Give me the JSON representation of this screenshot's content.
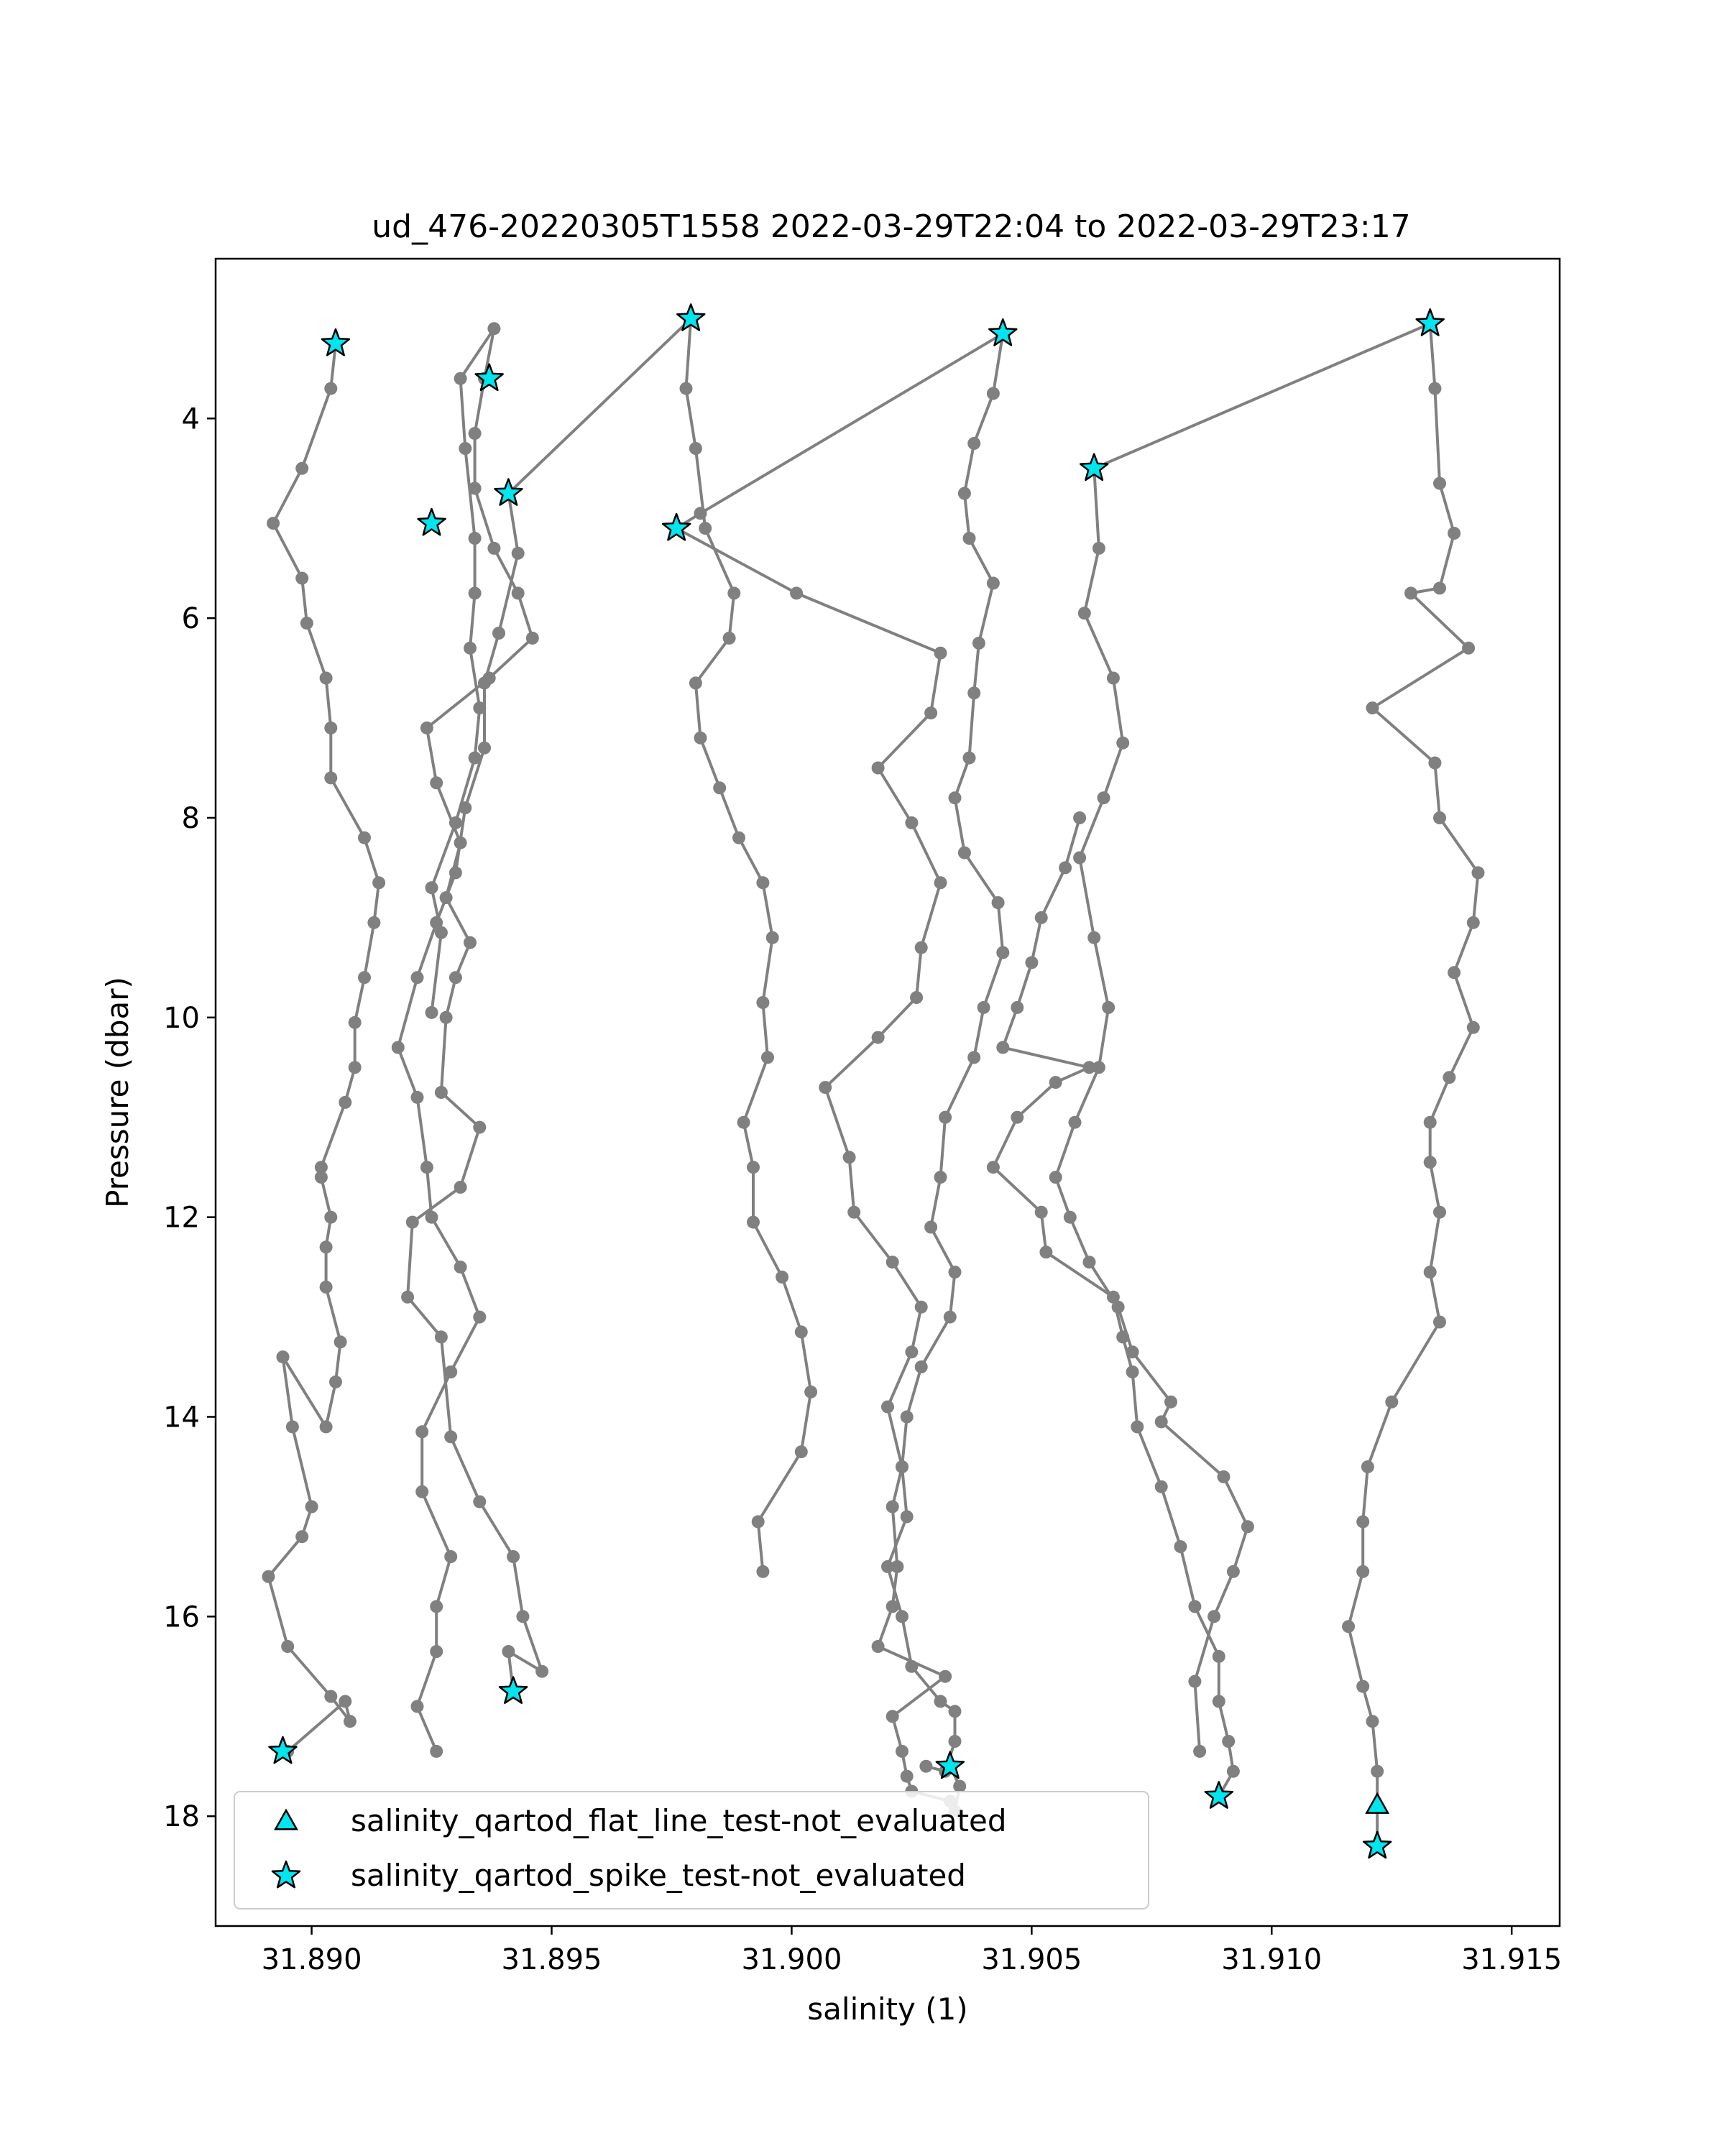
{
  "chart_data": {
    "type": "scatter",
    "title": "ud_476-20220305T1558 2022-03-29T22:04 to 2022-03-29T23:17",
    "xlabel": "salinity (1)",
    "ylabel": "Pressure (dbar)",
    "xlim": [
      31.888,
      31.916
    ],
    "ylim": [
      19.1,
      2.4
    ],
    "y_inverted": true,
    "grid": false,
    "xticks": [
      31.89,
      31.895,
      31.9,
      31.905,
      31.91,
      31.915
    ],
    "xtick_labels": [
      "31.890",
      "31.895",
      "31.900",
      "31.905",
      "31.910",
      "31.915"
    ],
    "yticks": [
      4,
      6,
      8,
      10,
      12,
      14,
      16,
      18
    ],
    "ytick_labels": [
      "4",
      "6",
      "8",
      "10",
      "12",
      "14",
      "16",
      "18"
    ],
    "colors": {
      "line": "#808080",
      "marker_fill": "#00e5ee",
      "marker_edge": "#000000"
    },
    "legend_position": "lower-left",
    "legend": [
      {
        "label": "salinity_qartod_flat_line_test-not_evaluated",
        "marker": "triangle"
      },
      {
        "label": "salinity_qartod_spike_test-not_evaluated",
        "marker": "star"
      }
    ],
    "series": [
      {
        "x": [
          31.8905,
          31.8904,
          31.8898,
          31.8892,
          31.8898,
          31.8899,
          31.8903,
          31.8904,
          31.8904,
          31.8911,
          31.8914,
          31.8913,
          31.8911,
          31.8909,
          31.8909,
          31.8907,
          31.8902,
          31.8902,
          31.8904,
          31.8903,
          31.8903,
          31.8906,
          31.8905,
          31.8903,
          31.8894,
          31.8896,
          31.89,
          31.8898,
          31.8891,
          31.8895,
          31.8904,
          31.8908,
          31.8907,
          31.8895
        ],
        "y": [
          3.25,
          3.7,
          4.5,
          5.05,
          5.6,
          6.05,
          6.6,
          7.1,
          7.6,
          8.2,
          8.65,
          9.05,
          9.6,
          10.05,
          10.5,
          10.85,
          11.5,
          11.6,
          12.0,
          12.3,
          12.7,
          13.25,
          13.65,
          14.1,
          13.4,
          14.1,
          14.9,
          15.2,
          15.6,
          16.3,
          16.8,
          17.05,
          16.85,
          17.35
        ]
      },
      {
        "x": [
          31.8942,
          31.8941,
          31.8948,
          31.8944,
          31.8942,
          31.8935,
          31.8929,
          31.8927,
          31.892,
          31.8921,
          31.8931,
          31.8935,
          31.8927,
          31.8928,
          31.893,
          31.8933,
          31.8928,
          31.8931,
          31.8926,
          31.8924,
          31.8937,
          31.8946,
          31.8943,
          31.8938,
          31.8934,
          31.8934,
          31.8936,
          31.8938,
          31.8931,
          31.8932,
          31.8934,
          31.8934,
          31.8933,
          31.8935,
          31.8934,
          31.893,
          31.8925,
          31.8927,
          31.8925
        ],
        "y": [
          16.75,
          16.35,
          16.55,
          16.0,
          15.4,
          14.85,
          14.2,
          13.2,
          12.8,
          12.05,
          11.7,
          11.1,
          10.75,
          10.0,
          9.6,
          9.25,
          8.8,
          8.25,
          7.65,
          7.1,
          6.6,
          6.2,
          5.75,
          5.3,
          4.7,
          4.15,
          3.6,
          3.1,
          3.6,
          4.3,
          5.2,
          5.75,
          6.3,
          6.9,
          7.4,
          8.05,
          8.7,
          9.15,
          9.95
        ]
      },
      {
        "x": [
          31.8941,
          31.8943,
          31.8939,
          31.8936,
          31.8936,
          31.8932,
          31.893,
          31.8926,
          31.8922,
          31.8918,
          31.8922,
          31.8924,
          31.8925,
          31.8931,
          31.8935,
          31.8929,
          31.8923,
          31.8923,
          31.8929,
          31.8926,
          31.8926,
          31.8922,
          31.8926
        ],
        "y": [
          4.75,
          5.35,
          6.15,
          6.65,
          7.3,
          7.9,
          8.55,
          9.05,
          9.6,
          10.3,
          10.8,
          11.5,
          12.0,
          12.5,
          13.0,
          13.55,
          14.15,
          14.75,
          15.4,
          15.9,
          16.35,
          16.9,
          17.35
        ]
      },
      {
        "x": [
          31.8941,
          31.8979,
          31.8978,
          31.898,
          31.8982,
          31.8988,
          31.8987,
          31.898,
          31.8981,
          31.8985,
          31.8989,
          31.8994,
          31.8996,
          31.8994,
          31.8995,
          31.899,
          31.8992,
          31.8992,
          31.8998,
          31.9002,
          31.9004,
          31.9002,
          31.8993,
          31.8994
        ],
        "y": [
          4.75,
          3.0,
          3.7,
          4.3,
          5.1,
          5.75,
          6.2,
          6.65,
          7.2,
          7.7,
          8.2,
          8.65,
          9.2,
          9.85,
          10.4,
          11.05,
          11.5,
          12.05,
          12.6,
          13.15,
          13.75,
          14.35,
          15.05,
          15.55
        ]
      },
      {
        "x": [
          31.9044,
          31.9042,
          31.9038,
          31.9036,
          31.9037,
          31.9042,
          31.9039,
          31.9038,
          31.9037,
          31.9034,
          31.9036,
          31.9043,
          31.9044,
          31.904,
          31.9038,
          31.9032,
          31.9031,
          31.9029,
          31.9034,
          31.9033,
          31.9027,
          31.9024,
          31.9023,
          31.9024,
          31.902,
          31.9023,
          31.9025,
          31.9031,
          31.9034,
          31.9034,
          31.9032,
          31.9028
        ],
        "y": [
          3.15,
          3.75,
          4.25,
          4.75,
          5.2,
          5.65,
          6.25,
          6.75,
          7.4,
          7.8,
          8.35,
          8.85,
          9.35,
          9.9,
          10.4,
          11.0,
          11.6,
          12.1,
          12.55,
          13.0,
          13.5,
          14.0,
          14.5,
          15.0,
          15.5,
          16.0,
          16.5,
          16.85,
          16.95,
          17.25,
          17.55,
          17.5
        ]
      },
      {
        "x": [
          31.9044,
          31.8981,
          31.8976,
          31.9001,
          31.9031,
          31.9029,
          31.9018,
          31.9025,
          31.9031,
          31.9027,
          31.9026,
          31.9018,
          31.9007,
          31.9012,
          31.9013,
          31.9021,
          31.9027,
          31.9025,
          31.902,
          31.9023,
          31.9021,
          31.9022,
          31.9021,
          31.9018,
          31.9032,
          31.9021,
          31.9023,
          31.9024,
          31.9025,
          31.9033,
          31.9034,
          31.9035,
          31.9033
        ],
        "y": [
          3.15,
          4.95,
          5.1,
          5.75,
          6.35,
          6.95,
          7.5,
          8.05,
          8.65,
          9.3,
          9.8,
          10.2,
          10.7,
          11.4,
          11.95,
          12.45,
          12.9,
          13.35,
          13.9,
          14.5,
          14.9,
          15.5,
          15.9,
          16.3,
          16.6,
          17.0,
          17.35,
          17.6,
          17.75,
          17.85,
          17.95,
          17.7,
          17.5
        ]
      },
      {
        "x": [
          31.9133,
          31.9134,
          31.9135,
          31.9138,
          31.9135,
          31.9129,
          31.9141,
          31.9121,
          31.9134,
          31.9135,
          31.9143,
          31.9142,
          31.9138,
          31.9142,
          31.9137,
          31.9133,
          31.9133,
          31.9135,
          31.9133,
          31.9135,
          31.9125,
          31.912,
          31.9119,
          31.9119,
          31.9116,
          31.9119,
          31.9121,
          31.9122,
          31.9122
        ],
        "y": [
          3.05,
          3.7,
          4.65,
          5.15,
          5.7,
          5.75,
          6.3,
          6.9,
          7.45,
          8.0,
          8.55,
          9.05,
          9.55,
          10.1,
          10.6,
          11.05,
          11.45,
          11.95,
          12.55,
          13.05,
          13.85,
          14.5,
          15.05,
          15.55,
          16.1,
          16.7,
          17.05,
          17.55,
          18.3
        ]
      },
      {
        "x": [
          31.9133,
          31.9063,
          31.9064,
          31.9061,
          31.9067,
          31.9069,
          31.9065,
          31.906,
          31.9063,
          31.9066,
          31.9064,
          31.9059,
          31.9055,
          31.9058,
          31.9062,
          31.9068,
          31.9071,
          31.9079,
          31.9077,
          31.909,
          31.9095,
          31.9092,
          31.9088,
          31.9084,
          31.9085
        ],
        "y": [
          3.05,
          4.5,
          5.3,
          5.95,
          6.6,
          7.25,
          7.8,
          8.4,
          9.2,
          9.9,
          10.5,
          11.05,
          11.6,
          12.0,
          12.45,
          12.9,
          13.35,
          13.85,
          14.05,
          14.6,
          15.1,
          15.55,
          16.0,
          16.65,
          17.35
        ]
      },
      {
        "x": [
          31.9089,
          31.9092,
          31.9091,
          31.9089,
          31.9089,
          31.9084,
          31.9081,
          31.9077,
          31.9072,
          31.9071,
          31.9069,
          31.9067,
          31.9053,
          31.9052,
          31.9042,
          31.9047,
          31.9055,
          31.9062,
          31.9044,
          31.9047,
          31.905,
          31.9052,
          31.9057,
          31.906
        ],
        "y": [
          17.8,
          17.55,
          17.25,
          16.85,
          16.4,
          15.9,
          15.3,
          14.7,
          14.1,
          13.55,
          13.2,
          12.8,
          12.35,
          11.95,
          11.5,
          11.0,
          10.65,
          10.5,
          10.3,
          9.9,
          9.45,
          9.0,
          8.5,
          8.0
        ]
      }
    ],
    "flat_line_points": [
      {
        "x": 31.9122,
        "y": 17.9
      }
    ],
    "spike_points": [
      {
        "x": 31.8905,
        "y": 3.25
      },
      {
        "x": 31.8937,
        "y": 3.6
      },
      {
        "x": 31.8941,
        "y": 4.75
      },
      {
        "x": 31.8925,
        "y": 5.05
      },
      {
        "x": 31.8979,
        "y": 3.0
      },
      {
        "x": 31.8976,
        "y": 5.1
      },
      {
        "x": 31.9044,
        "y": 3.15
      },
      {
        "x": 31.9063,
        "y": 4.5
      },
      {
        "x": 31.9133,
        "y": 3.05
      },
      {
        "x": 31.8894,
        "y": 17.35
      },
      {
        "x": 31.8942,
        "y": 16.75
      },
      {
        "x": 31.9033,
        "y": 17.5
      },
      {
        "x": 31.9089,
        "y": 17.8
      },
      {
        "x": 31.9122,
        "y": 18.3
      }
    ]
  }
}
